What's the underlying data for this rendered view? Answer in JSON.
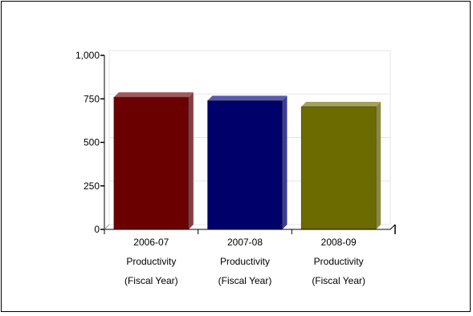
{
  "chart_data": {
    "type": "bar",
    "categories": [
      [
        "2006-07",
        "Productivity",
        "(Fiscal Year)"
      ],
      [
        "2007-08",
        "Productivity",
        "(Fiscal Year)"
      ],
      [
        "2008-09",
        "Productivity",
        "(Fiscal Year)"
      ]
    ],
    "values": [
      760,
      740,
      705
    ],
    "ylim": [
      0,
      1000
    ],
    "yticks": [
      0,
      250,
      500,
      750,
      1000
    ],
    "ytick_labels": [
      "0",
      "250",
      "500",
      "750",
      "1,000"
    ],
    "title": "",
    "xlabel": "",
    "ylabel": "",
    "grid": true,
    "colors": {
      "bars": [
        "#6b0000",
        "#00006b",
        "#6b6b00"
      ],
      "bar_tops": [
        "#a35a5a",
        "#5a5ab0",
        "#a3a35a"
      ],
      "bar_sides": [
        "#8a3b3b",
        "#3b3b9a",
        "#8a8a3b"
      ],
      "grid": "#e6e6e6",
      "axis": "#000000"
    }
  }
}
